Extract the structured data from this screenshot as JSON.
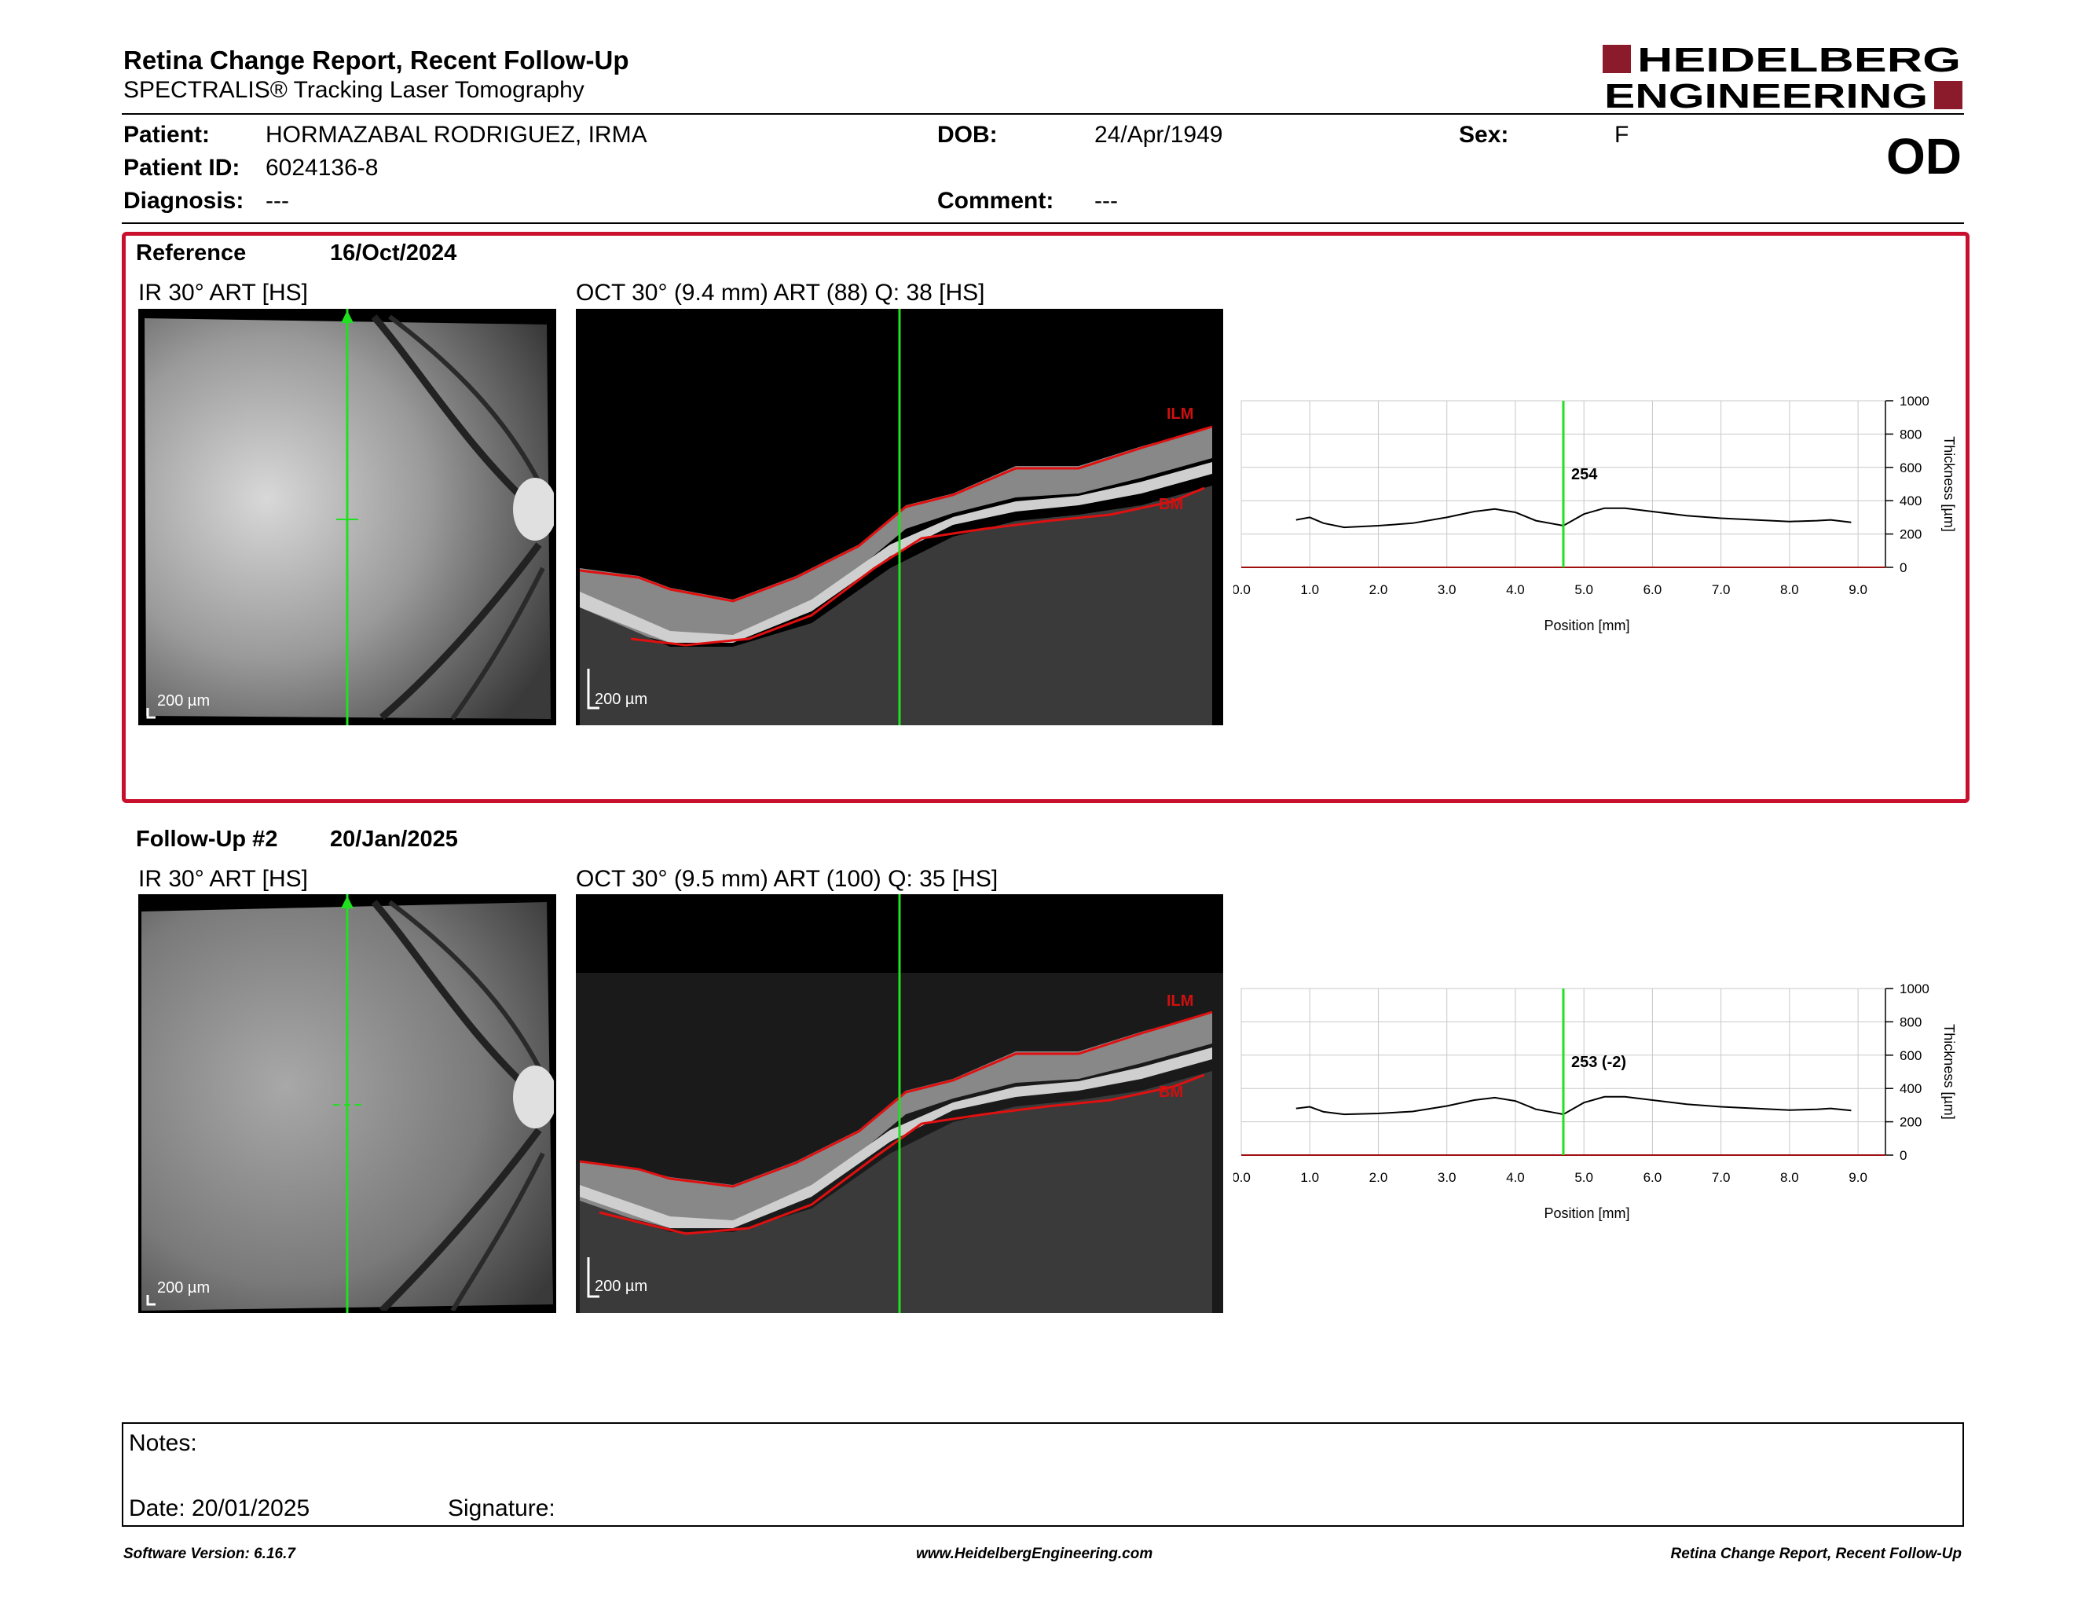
{
  "header": {
    "title": "Retina Change Report, Recent Follow-Up",
    "subtitle": "SPECTRALIS® Tracking Laser Tomography",
    "brand_line1": "HEIDELBERG",
    "brand_line2": "ENGINEERING",
    "brand_color": "#8b1a2b",
    "eye": "OD"
  },
  "patient": {
    "patient_label": "Patient:",
    "patient_name": "HORMAZABAL RODRIGUEZ, IRMA",
    "patient_id_label": "Patient ID:",
    "patient_id": "6024136-8",
    "diagnosis_label": "Diagnosis:",
    "diagnosis": "---",
    "dob_label": "DOB:",
    "dob": "24/Apr/1949",
    "comment_label": "Comment:",
    "comment": "---",
    "sex_label": "Sex:",
    "sex": "F"
  },
  "reference": {
    "label": "Reference",
    "date": "16/Oct/2024",
    "ir_title": "IR 30° ART [HS]",
    "oct_title": "OCT 30° (9.4 mm) ART (88) Q: 38 [HS]",
    "ir_scale": "200 µm",
    "oct_scale": "200 µm",
    "ilm_label": "ILM",
    "bm_label": "BM",
    "marker_value": "254"
  },
  "followup": {
    "label": "Follow-Up #2",
    "date": "20/Jan/2025",
    "ir_title": "IR 30° ART [HS]",
    "oct_title": "OCT 30° (9.5 mm) ART (100) Q: 35 [HS]",
    "ir_scale": "200 µm",
    "oct_scale": "200 µm",
    "ilm_label": "ILM",
    "bm_label": "BM",
    "marker_value": "253 (-2)"
  },
  "chart_data": [
    {
      "type": "line",
      "xlabel": "Position [mm]",
      "ylabel": "Thickness [µm]",
      "xlim": [
        0,
        9.4
      ],
      "ylim": [
        0,
        1000
      ],
      "xticks": [
        "0.0",
        "1.0",
        "2.0",
        "3.0",
        "4.0",
        "5.0",
        "6.0",
        "7.0",
        "8.0",
        "9.0"
      ],
      "yticks": [
        "0",
        "200",
        "400",
        "600",
        "800",
        "1000"
      ],
      "grid": true,
      "marker_x": 4.7,
      "marker_label": "254",
      "x": [
        0.8,
        1.0,
        1.2,
        1.5,
        2.0,
        2.5,
        3.0,
        3.4,
        3.7,
        4.0,
        4.3,
        4.7,
        5.0,
        5.3,
        5.6,
        6.0,
        6.5,
        7.0,
        7.5,
        8.0,
        8.4,
        8.6,
        8.9
      ],
      "y": [
        285,
        300,
        265,
        240,
        250,
        265,
        300,
        335,
        350,
        330,
        280,
        250,
        320,
        355,
        355,
        335,
        310,
        295,
        285,
        275,
        280,
        285,
        270
      ]
    },
    {
      "type": "line",
      "xlabel": "Position [mm]",
      "ylabel": "Thickness [µm]",
      "xlim": [
        0,
        9.4
      ],
      "ylim": [
        0,
        1000
      ],
      "xticks": [
        "0.0",
        "1.0",
        "2.0",
        "3.0",
        "4.0",
        "5.0",
        "6.0",
        "7.0",
        "8.0",
        "9.0"
      ],
      "yticks": [
        "0",
        "200",
        "400",
        "600",
        "800",
        "1000"
      ],
      "grid": true,
      "marker_x": 4.7,
      "marker_label": "253 (-2)",
      "x": [
        0.8,
        1.0,
        1.2,
        1.5,
        2.0,
        2.5,
        3.0,
        3.4,
        3.7,
        4.0,
        4.3,
        4.7,
        5.0,
        5.3,
        5.6,
        6.0,
        6.5,
        7.0,
        7.5,
        8.0,
        8.4,
        8.6,
        8.9
      ],
      "y": [
        280,
        290,
        260,
        245,
        250,
        262,
        295,
        330,
        345,
        325,
        275,
        245,
        315,
        350,
        350,
        330,
        305,
        290,
        280,
        270,
        275,
        280,
        268
      ]
    }
  ],
  "notes": {
    "notes_label": "Notes:",
    "date_label": "Date: 20/01/2025",
    "signature_label": "Signature:"
  },
  "footer": {
    "software": "Software Version: 6.16.7",
    "website": "www.HeidelbergEngineering.com",
    "report_name": "Retina Change Report, Recent Follow-Up"
  }
}
